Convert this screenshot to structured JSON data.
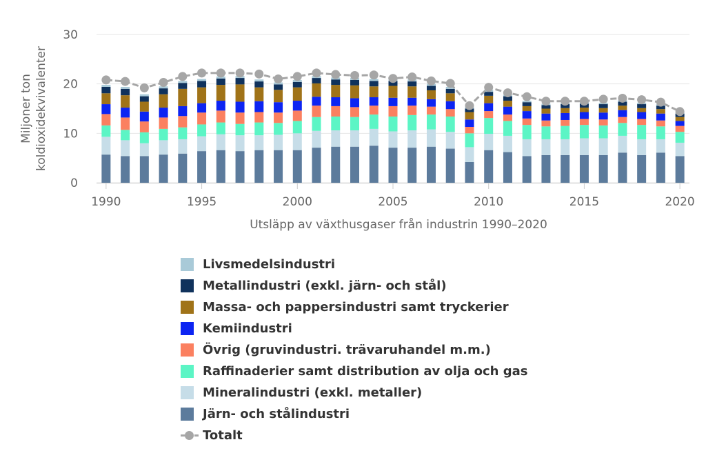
{
  "chart_data": {
    "type": "bar",
    "stacked": true,
    "xlabel": "Utsläpp av växthusgaser från industrin 1990–2020",
    "ylabel": [
      "Miljoner ton",
      "koldioxidekvivalenter"
    ],
    "ylim": [
      0,
      30
    ],
    "yticks": [
      "0",
      "10",
      "20",
      "30"
    ],
    "xticks": [
      "1990",
      "1995",
      "2000",
      "2005",
      "2010",
      "2015",
      "2020"
    ],
    "grid": true,
    "legend_position": "bottom",
    "categories": [
      1990,
      1991,
      1992,
      1993,
      1994,
      1995,
      1996,
      1997,
      1998,
      1999,
      2000,
      2001,
      2002,
      2003,
      2004,
      2005,
      2006,
      2007,
      2008,
      2009,
      2010,
      2011,
      2012,
      2013,
      2014,
      2015,
      2016,
      2017,
      2018,
      2019,
      2020
    ],
    "series": [
      {
        "name": "Järn- och stålindustri",
        "color": "#5c7b9c",
        "values": [
          5.7,
          5.4,
          5.4,
          5.7,
          5.9,
          6.4,
          6.6,
          6.4,
          6.6,
          6.6,
          6.6,
          7.1,
          7.3,
          7.3,
          7.5,
          7.1,
          7.1,
          7.3,
          6.9,
          4.2,
          6.6,
          6.2,
          5.4,
          5.6,
          5.6,
          5.6,
          5.6,
          6.1,
          5.6,
          6.1,
          5.4
        ]
      },
      {
        "name": "Mineralindustri (exkl. metaller)",
        "color": "#c6dde8",
        "values": [
          3.6,
          3.2,
          2.6,
          2.9,
          2.9,
          3.0,
          3.2,
          3.2,
          3.0,
          3.1,
          3.4,
          3.4,
          3.3,
          3.3,
          3.4,
          3.3,
          3.5,
          3.5,
          3.4,
          3.0,
          3.3,
          3.3,
          3.4,
          3.2,
          3.2,
          3.4,
          3.4,
          3.4,
          3.2,
          2.7,
          2.7
        ]
      },
      {
        "name": "Raffinaderier samt distribution av olja och gas",
        "color": "#5cf5c5",
        "values": [
          2.3,
          2.1,
          2.2,
          2.3,
          2.4,
          2.4,
          2.4,
          2.3,
          2.6,
          2.4,
          2.5,
          2.8,
          2.8,
          2.7,
          2.9,
          3.0,
          3.1,
          3.0,
          3.1,
          2.8,
          3.2,
          3.0,
          2.9,
          2.6,
          2.7,
          2.7,
          2.6,
          2.6,
          2.9,
          2.6,
          2.2
        ]
      },
      {
        "name": "Övrig (gruvindustri. trävaruhandel m.m.)",
        "color": "#fb8060",
        "values": [
          2.3,
          2.5,
          2.2,
          2.3,
          2.3,
          2.4,
          2.4,
          2.3,
          2.1,
          2.1,
          2.1,
          2.3,
          2.1,
          2.0,
          1.8,
          2.1,
          1.9,
          1.6,
          1.5,
          1.3,
          1.4,
          1.3,
          1.3,
          1.2,
          1.2,
          1.2,
          1.2,
          1.2,
          1.2,
          1.2,
          1.2
        ]
      },
      {
        "name": "Kemiindustri",
        "color": "#0c24f2",
        "values": [
          2.0,
          2.0,
          2.0,
          2.0,
          2.0,
          1.9,
          2.0,
          2.2,
          2.2,
          2.1,
          2.0,
          1.8,
          1.8,
          1.8,
          1.7,
          1.7,
          1.6,
          1.5,
          1.6,
          1.5,
          1.6,
          1.6,
          1.5,
          1.4,
          1.4,
          1.4,
          1.4,
          1.4,
          1.4,
          1.4,
          1.0
        ]
      },
      {
        "name": "Massa- och pappersindustri samt tryckerier",
        "color": "#a07318",
        "values": [
          2.2,
          2.5,
          2.0,
          2.7,
          3.5,
          3.2,
          3.2,
          3.5,
          2.8,
          2.5,
          2.7,
          2.7,
          2.5,
          2.6,
          2.2,
          2.4,
          2.3,
          1.8,
          1.6,
          1.5,
          1.5,
          1.2,
          1.0,
          1.0,
          1.0,
          0.9,
          0.9,
          0.9,
          0.8,
          0.9,
          0.8
        ]
      },
      {
        "name": "Metallindustri (exkl. järn- och stål)",
        "color": "#10325c",
        "values": [
          1.3,
          1.3,
          1.1,
          1.2,
          1.2,
          1.3,
          1.3,
          1.3,
          1.2,
          1.1,
          1.1,
          1.1,
          1.1,
          1.1,
          1.1,
          1.0,
          1.0,
          0.9,
          0.9,
          0.7,
          0.8,
          0.9,
          0.8,
          0.7,
          0.8,
          0.8,
          0.8,
          0.8,
          0.8,
          0.7,
          0.7
        ]
      },
      {
        "name": "Livsmedelsindustri",
        "color": "#a9cad8",
        "values": [
          0.4,
          0.4,
          0.4,
          0.4,
          0.4,
          0.4,
          0.4,
          0.4,
          0.4,
          0.4,
          0.4,
          0.4,
          0.4,
          0.4,
          0.4,
          0.4,
          0.4,
          0.4,
          0.4,
          0.3,
          0.4,
          0.3,
          0.3,
          0.3,
          0.3,
          0.3,
          0.3,
          0.3,
          0.3,
          0.3,
          0.3
        ]
      }
    ],
    "total": {
      "name": "Totalt",
      "color": "#a6a6a6",
      "values": [
        20.8,
        20.5,
        19.2,
        20.3,
        21.5,
        22.2,
        22.2,
        22.2,
        22.0,
        21.0,
        21.5,
        22.2,
        21.9,
        21.7,
        21.8,
        21.1,
        21.4,
        20.6,
        20.1,
        15.6,
        19.3,
        18.2,
        17.4,
        16.5,
        16.5,
        16.5,
        16.9,
        17.1,
        16.8,
        16.3,
        14.4
      ]
    },
    "legend_order": [
      7,
      6,
      5,
      4,
      3,
      2,
      1,
      0,
      "total"
    ]
  }
}
